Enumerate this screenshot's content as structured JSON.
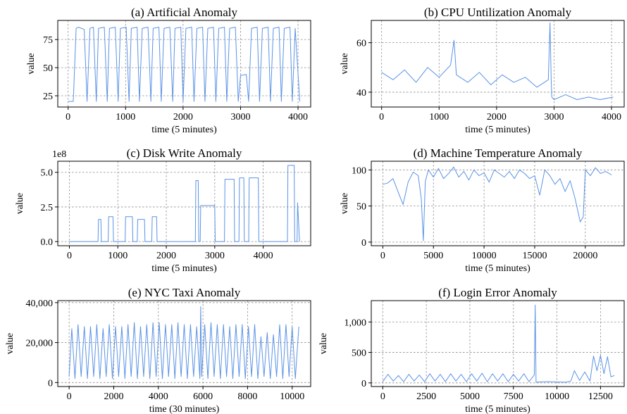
{
  "chart_data": [
    {
      "type": "line",
      "title": "(a) Artificial Anomaly",
      "xlabel": "time (5 minutes)",
      "ylabel": "value",
      "xlim": [
        -180,
        4220
      ],
      "ylim": [
        15,
        92
      ],
      "xticks": [
        0,
        1000,
        2000,
        3000,
        4000
      ],
      "xtick_labels": [
        "0",
        "1000",
        "2000",
        "3000",
        "4000"
      ],
      "yticks": [
        25,
        50,
        75
      ],
      "ytick_labels": [
        "25",
        "50",
        "75"
      ],
      "grid": true,
      "color": "#5b93e6",
      "x": [
        0,
        90,
        140,
        180,
        280,
        330,
        380,
        440,
        490,
        530,
        630,
        680,
        720,
        820,
        870,
        910,
        1010,
        1060,
        1100,
        1200,
        1240,
        1290,
        1390,
        1440,
        1480,
        1580,
        1620,
        1670,
        1770,
        1820,
        1860,
        1960,
        2000,
        2050,
        2150,
        2190,
        2240,
        2340,
        2380,
        2430,
        2530,
        2570,
        2620,
        2720,
        2760,
        2810,
        2910,
        2960,
        3000,
        3100,
        3140,
        3190,
        3290,
        3330,
        3380,
        3480,
        3520,
        3570,
        3670,
        3710,
        3760,
        3860,
        3900,
        3950,
        4030
      ],
      "y": [
        20,
        20,
        85,
        86,
        84,
        20,
        85,
        86,
        20,
        85,
        86,
        20,
        85,
        86,
        20,
        85,
        86,
        20,
        85,
        86,
        20,
        85,
        86,
        20,
        85,
        86,
        20,
        85,
        86,
        20,
        85,
        86,
        20,
        85,
        86,
        20,
        85,
        86,
        20,
        85,
        86,
        20,
        85,
        86,
        20,
        85,
        86,
        20,
        43,
        44,
        20,
        85,
        86,
        20,
        85,
        86,
        20,
        85,
        86,
        20,
        85,
        86,
        20,
        85,
        20
      ]
    },
    {
      "type": "line",
      "title": "(b) CPU Untilization Anomaly",
      "xlabel": "time (5 minutes)",
      "ylabel": "value",
      "xlim": [
        -180,
        4220
      ],
      "ylim": [
        34,
        69
      ],
      "xticks": [
        0,
        1000,
        2000,
        3000,
        4000
      ],
      "xtick_labels": [
        "0",
        "1000",
        "2000",
        "3000",
        "4000"
      ],
      "yticks": [
        40,
        60
      ],
      "ytick_labels": [
        "40",
        "60"
      ],
      "grid": true,
      "color": "#5b93e6",
      "x": [
        0,
        200,
        400,
        600,
        800,
        1000,
        1200,
        1260,
        1300,
        1500,
        1700,
        1900,
        2100,
        2300,
        2500,
        2700,
        2900,
        2930,
        2950,
        2960,
        3000,
        3200,
        3400,
        3600,
        3800,
        4030
      ],
      "y": [
        48,
        45,
        49,
        44,
        50,
        46,
        51,
        61,
        47,
        44,
        48,
        43,
        47,
        44,
        46,
        42,
        45,
        68,
        45,
        38,
        37,
        39,
        37,
        38,
        37,
        38
      ]
    },
    {
      "type": "line",
      "title": "(c) Disk Write Anomaly",
      "xlabel": "time (5 minutes)",
      "ylabel": "value",
      "scale_note": "1e8",
      "xlim": [
        -240,
        4980
      ],
      "ylim": [
        -0.3,
        5.8
      ],
      "xticks": [
        0,
        1000,
        2000,
        3000,
        4000
      ],
      "xtick_labels": [
        "0",
        "1000",
        "2000",
        "3000",
        "4000"
      ],
      "yticks": [
        0,
        2.5,
        5
      ],
      "ytick_labels": [
        "0.0",
        "2.5",
        "5.0"
      ],
      "grid": true,
      "color": "#5b93e6",
      "x": [
        0,
        590,
        600,
        650,
        660,
        800,
        810,
        900,
        910,
        1150,
        1160,
        1300,
        1310,
        1400,
        1410,
        1550,
        1560,
        1700,
        1710,
        1800,
        1810,
        1950,
        1960,
        2600,
        2610,
        2660,
        2670,
        2700,
        2710,
        3000,
        3010,
        3200,
        3210,
        3400,
        3410,
        3500,
        3510,
        3600,
        3610,
        3700,
        3710,
        3900,
        3910,
        4000,
        4010,
        4500,
        4510,
        4640,
        4650,
        4700,
        4710,
        4750
      ],
      "y": [
        0,
        0,
        1.6,
        1.6,
        0,
        0,
        1.8,
        1.8,
        0,
        0,
        1.8,
        1.8,
        0,
        0,
        1.6,
        1.6,
        0,
        0,
        1.8,
        1.8,
        0,
        0,
        0,
        0,
        4.4,
        4.4,
        0,
        0,
        2.6,
        2.6,
        0,
        0,
        4.5,
        4.5,
        0,
        0,
        4.6,
        4.6,
        0,
        0,
        4.6,
        4.6,
        0,
        0,
        0,
        0,
        5.5,
        5.5,
        0,
        0,
        2.8,
        0
      ]
    },
    {
      "type": "line",
      "title": "(d) Machine Temperature Anomaly",
      "xlabel": "time (5 minutes)",
      "ylabel": "value",
      "xlim": [
        -1140,
        23840
      ],
      "ylim": [
        -5,
        112
      ],
      "xticks": [
        0,
        5000,
        10000,
        15000,
        20000
      ],
      "xtick_labels": [
        "0",
        "5000",
        "10000",
        "15000",
        "20000"
      ],
      "yticks": [
        0,
        50,
        100
      ],
      "ytick_labels": [
        "0",
        "50",
        "100"
      ],
      "grid": true,
      "color": "#5b93e6",
      "x": [
        0,
        500,
        1000,
        1500,
        2000,
        2500,
        3000,
        3500,
        3800,
        4000,
        4200,
        4500,
        5000,
        5500,
        6000,
        6500,
        7000,
        7500,
        8000,
        8500,
        9000,
        9500,
        10000,
        10500,
        11000,
        11500,
        12000,
        12500,
        13000,
        13500,
        14000,
        14500,
        15000,
        15500,
        16000,
        16500,
        17000,
        17500,
        18000,
        18500,
        19000,
        19500,
        19800,
        20000,
        20500,
        21000,
        21500,
        22000,
        22600
      ],
      "y": [
        80,
        82,
        88,
        70,
        52,
        83,
        97,
        92,
        60,
        2,
        84,
        100,
        90,
        102,
        88,
        95,
        104,
        90,
        98,
        86,
        100,
        92,
        96,
        83,
        100,
        95,
        90,
        98,
        88,
        100,
        95,
        88,
        92,
        65,
        100,
        92,
        80,
        88,
        70,
        85,
        60,
        28,
        35,
        100,
        92,
        103,
        95,
        98,
        93
      ]
    },
    {
      "type": "line",
      "title": "(e) NYC Taxi Anomaly",
      "xlabel": "time (30 minutes)",
      "ylabel": "value",
      "xlim": [
        -510,
        10830
      ],
      "ylim": [
        -2000,
        41000
      ],
      "xticks": [
        0,
        2000,
        4000,
        6000,
        8000,
        10000
      ],
      "xtick_labels": [
        "0",
        "2000",
        "4000",
        "6000",
        "8000",
        "10000"
      ],
      "yticks": [
        0,
        20000,
        40000
      ],
      "ytick_labels": [
        "0",
        "20,000",
        "40,000"
      ],
      "grid": true,
      "color": "#5b93e6",
      "x": [
        0,
        120,
        260,
        400,
        540,
        680,
        820,
        960,
        1100,
        1240,
        1380,
        1520,
        1660,
        1800,
        1940,
        2080,
        2220,
        2360,
        2500,
        2640,
        2780,
        2920,
        3060,
        3200,
        3340,
        3480,
        3620,
        3760,
        3900,
        4040,
        4180,
        4320,
        4460,
        4600,
        4740,
        4880,
        5020,
        5160,
        5300,
        5440,
        5580,
        5720,
        5860,
        5900,
        5940,
        6080,
        6220,
        6360,
        6500,
        6640,
        6780,
        6920,
        7060,
        7200,
        7340,
        7480,
        7620,
        7760,
        7900,
        8040,
        8180,
        8320,
        8460,
        8600,
        8740,
        8880,
        9020,
        9160,
        9300,
        9440,
        9580,
        9720,
        9860,
        10000,
        10140,
        10300
      ],
      "y": [
        3000,
        27000,
        2000,
        29000,
        3000,
        28000,
        2000,
        28000,
        3000,
        29000,
        2000,
        27000,
        3000,
        29000,
        2000,
        28000,
        3000,
        28000,
        2000,
        29000,
        3000,
        30000,
        2000,
        28000,
        3000,
        29000,
        2000,
        30000,
        3000,
        30000,
        2000,
        29000,
        3000,
        29000,
        2000,
        30000,
        3000,
        29000,
        2000,
        29000,
        3000,
        28000,
        2000,
        38000,
        3000,
        29000,
        2000,
        30000,
        3000,
        29000,
        2000,
        29000,
        3000,
        28000,
        2000,
        29000,
        3000,
        29000,
        2000,
        28000,
        3000,
        29000,
        2000,
        23000,
        3000,
        25000,
        2000,
        24000,
        3000,
        29000,
        2000,
        29000,
        3000,
        28000,
        2000,
        28000
      ]
    },
    {
      "type": "line",
      "title": "(f) Login Error Anomaly",
      "xlabel": "time (5 minutes)",
      "ylabel": "value",
      "xlim": [
        -660,
        13860
      ],
      "ylim": [
        -60,
        1350
      ],
      "xticks": [
        0,
        2500,
        5000,
        7500,
        10000,
        12500
      ],
      "xtick_labels": [
        "0",
        "2500",
        "5000",
        "7500",
        "10000",
        "12500"
      ],
      "yticks": [
        0,
        500,
        1000
      ],
      "ytick_labels": [
        "0",
        "500",
        "1,000"
      ],
      "grid": true,
      "color": "#5b93e6",
      "x": [
        0,
        300,
        600,
        900,
        1200,
        1500,
        1800,
        2100,
        2400,
        2700,
        3000,
        3300,
        3600,
        3900,
        4200,
        4500,
        4800,
        5100,
        5400,
        5700,
        6000,
        6300,
        6600,
        6900,
        7200,
        7500,
        7800,
        8100,
        8400,
        8700,
        8750,
        8800,
        9000,
        9500,
        10000,
        10500,
        10800,
        11000,
        11300,
        11600,
        11900,
        12100,
        12300,
        12500,
        12700,
        12900,
        13100,
        13300
      ],
      "y": [
        20,
        140,
        30,
        120,
        20,
        140,
        30,
        130,
        20,
        150,
        30,
        140,
        20,
        150,
        30,
        140,
        20,
        150,
        30,
        160,
        20,
        150,
        30,
        150,
        20,
        140,
        30,
        150,
        20,
        130,
        1280,
        10,
        15,
        20,
        15,
        10,
        30,
        200,
        40,
        180,
        30,
        440,
        200,
        450,
        150,
        430,
        100,
        120
      ]
    }
  ]
}
